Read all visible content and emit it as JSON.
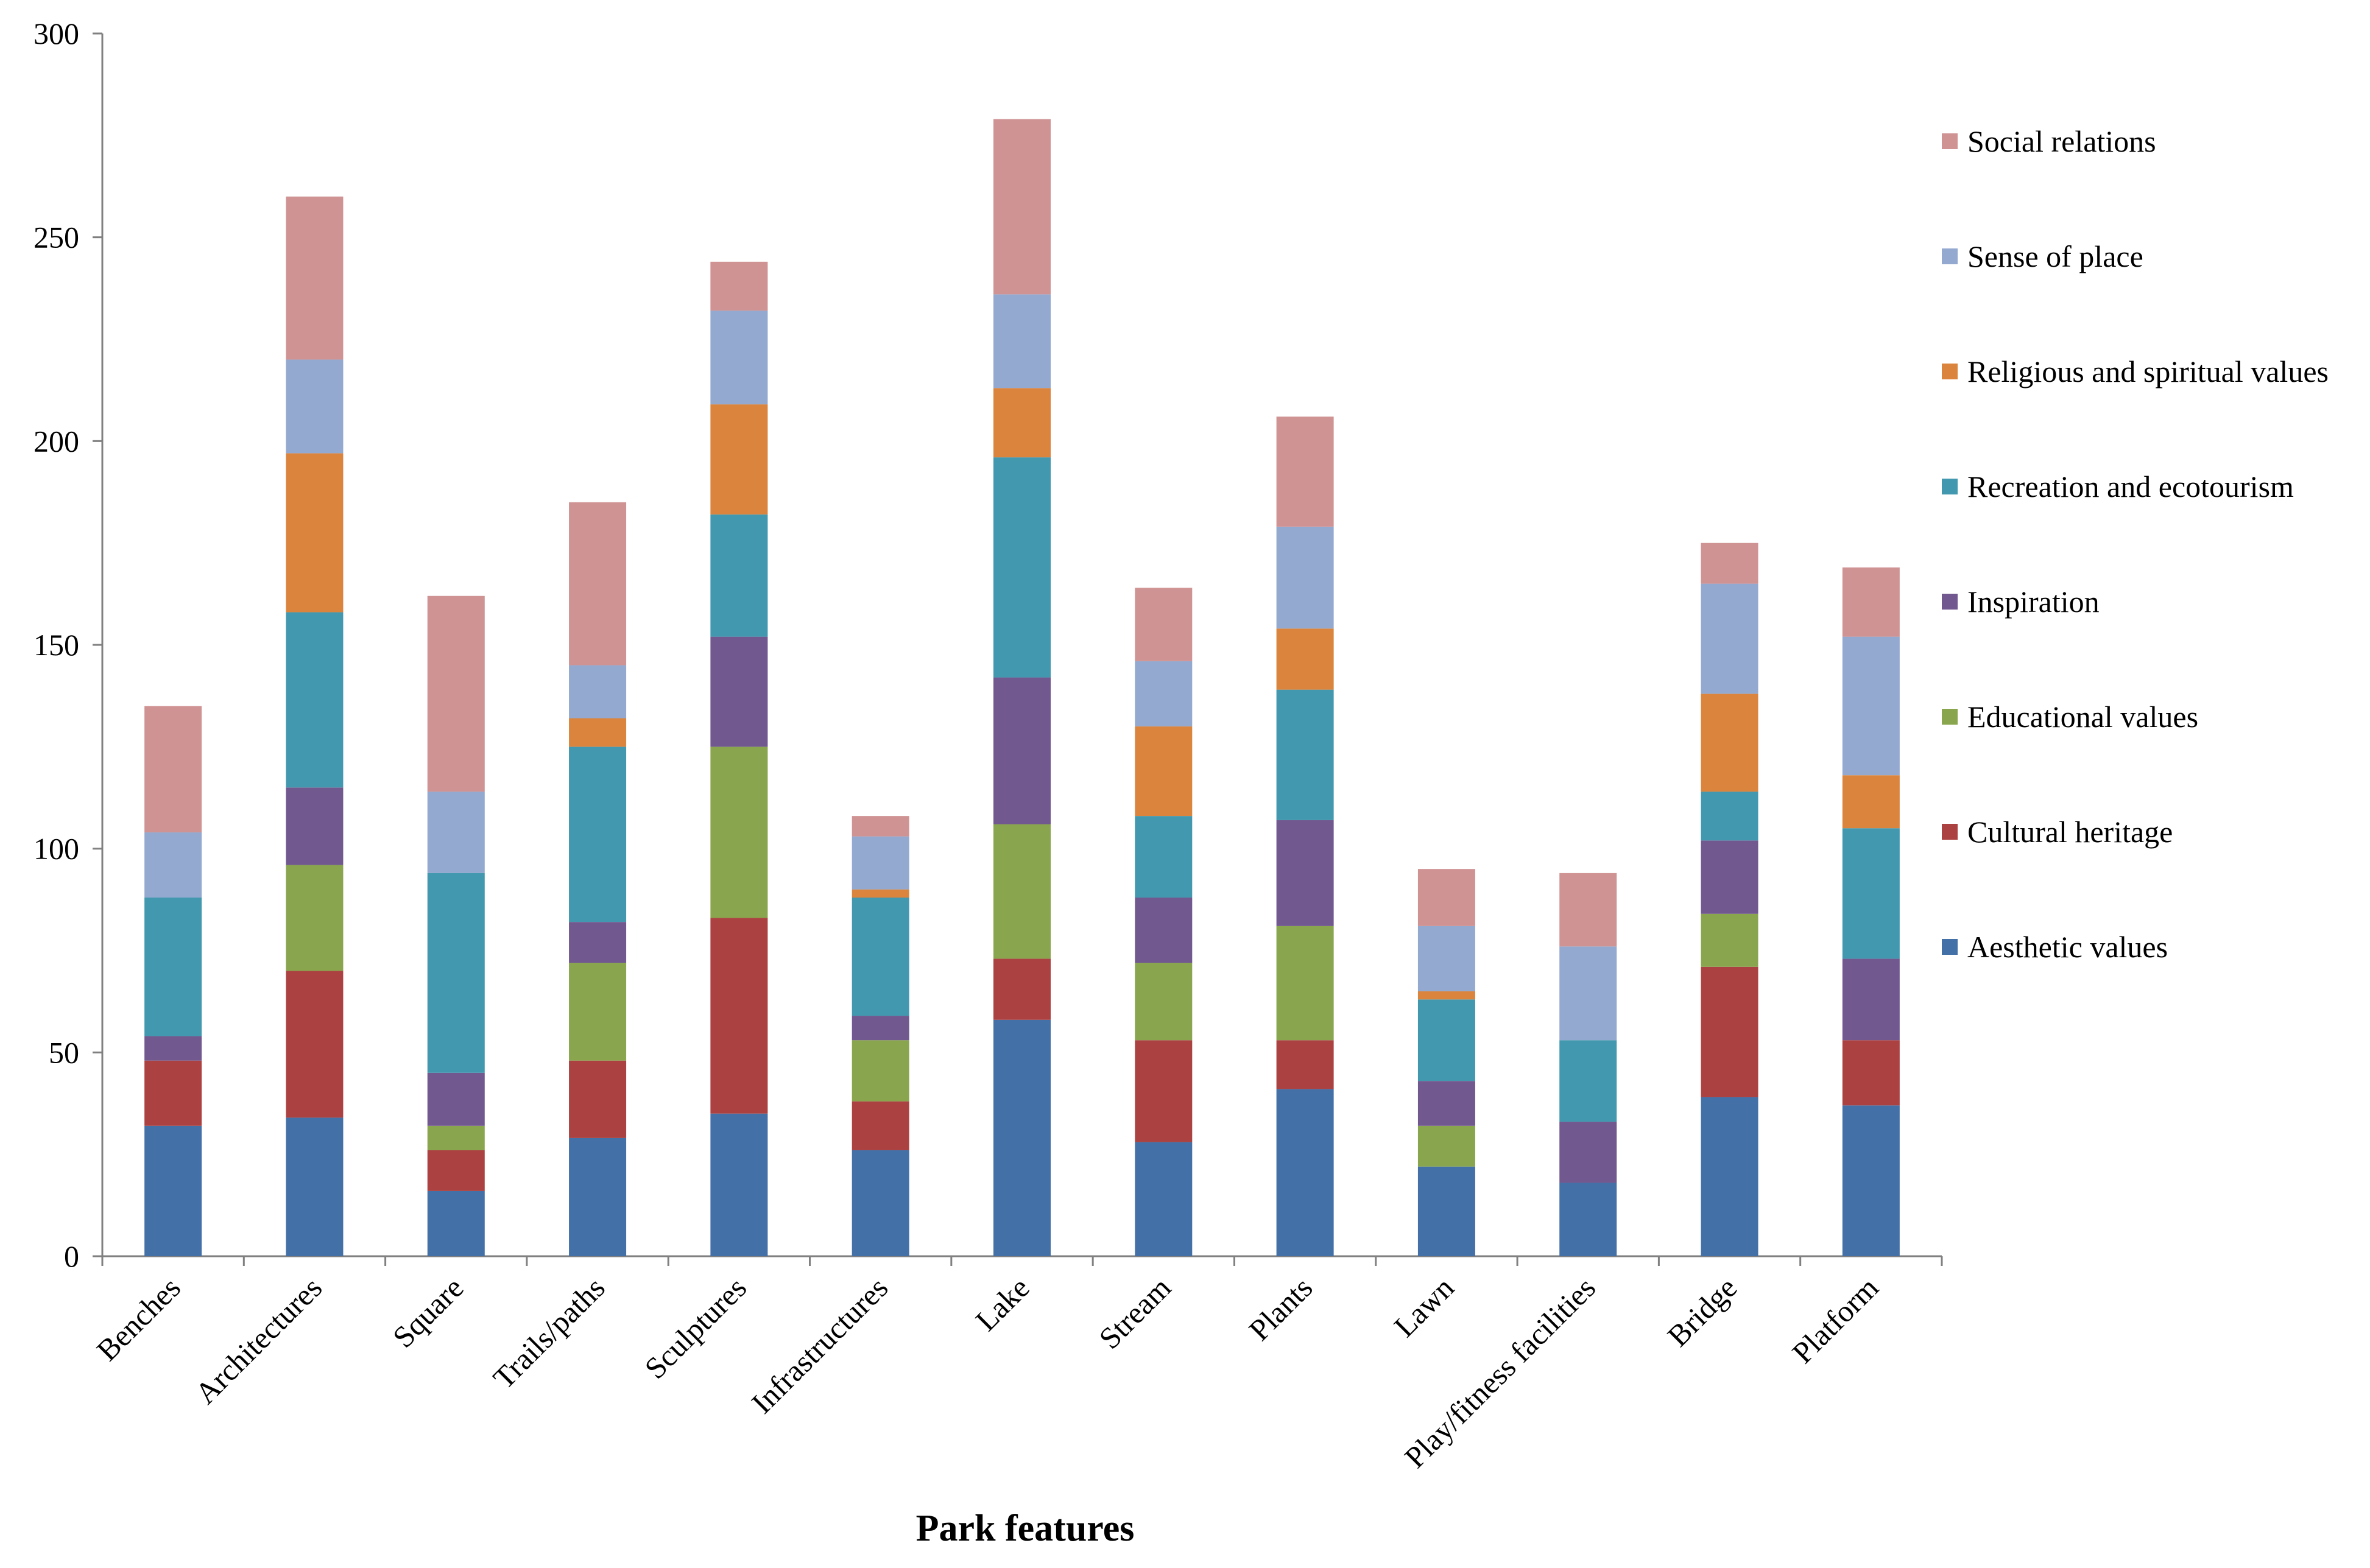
{
  "chart_data": {
    "type": "bar",
    "stacked": true,
    "title": "",
    "xlabel": "Park features",
    "ylabel": "",
    "ylim": [
      0,
      300
    ],
    "yticks": [
      0,
      50,
      100,
      150,
      200,
      250,
      300
    ],
    "grid": false,
    "legend_position": "right",
    "categories": [
      "Benches",
      "Architectures",
      "Square",
      "Trails/paths",
      "Sculptures",
      "Infrastructures",
      "Lake",
      "Stream",
      "Plants",
      "Lawn",
      "Play/fitness facilities",
      "Bridge",
      "Platform"
    ],
    "series": [
      {
        "name": "Aesthetic values",
        "color": "#4470A8",
        "values": [
          32,
          34,
          16,
          29,
          35,
          26,
          58,
          28,
          41,
          22,
          18,
          39,
          37
        ]
      },
      {
        "name": "Cultural heritage",
        "color": "#AB4241",
        "values": [
          16,
          36,
          10,
          19,
          48,
          12,
          15,
          25,
          12,
          0,
          0,
          32,
          16
        ]
      },
      {
        "name": "Educational values",
        "color": "#89A54E",
        "values": [
          0,
          26,
          6,
          24,
          42,
          15,
          33,
          19,
          28,
          10,
          0,
          13,
          0
        ]
      },
      {
        "name": "Inspiration",
        "color": "#71588F",
        "values": [
          6,
          19,
          13,
          10,
          27,
          6,
          36,
          16,
          26,
          11,
          15,
          18,
          20
        ]
      },
      {
        "name": "Recreation and ecotourism",
        "color": "#4198AF",
        "values": [
          34,
          43,
          49,
          43,
          30,
          29,
          54,
          20,
          32,
          20,
          20,
          12,
          32
        ]
      },
      {
        "name": "Religious and spiritual values",
        "color": "#DB843D",
        "values": [
          0,
          39,
          0,
          7,
          27,
          2,
          17,
          22,
          15,
          2,
          0,
          24,
          13
        ]
      },
      {
        "name": "Sense of place",
        "color": "#93A9CF",
        "values": [
          16,
          23,
          20,
          13,
          23,
          13,
          23,
          16,
          25,
          16,
          23,
          27,
          34
        ]
      },
      {
        "name": "Social relations",
        "color": "#D09394",
        "values": [
          31,
          40,
          48,
          40,
          12,
          5,
          43,
          18,
          27,
          14,
          18,
          10,
          17
        ]
      }
    ]
  }
}
